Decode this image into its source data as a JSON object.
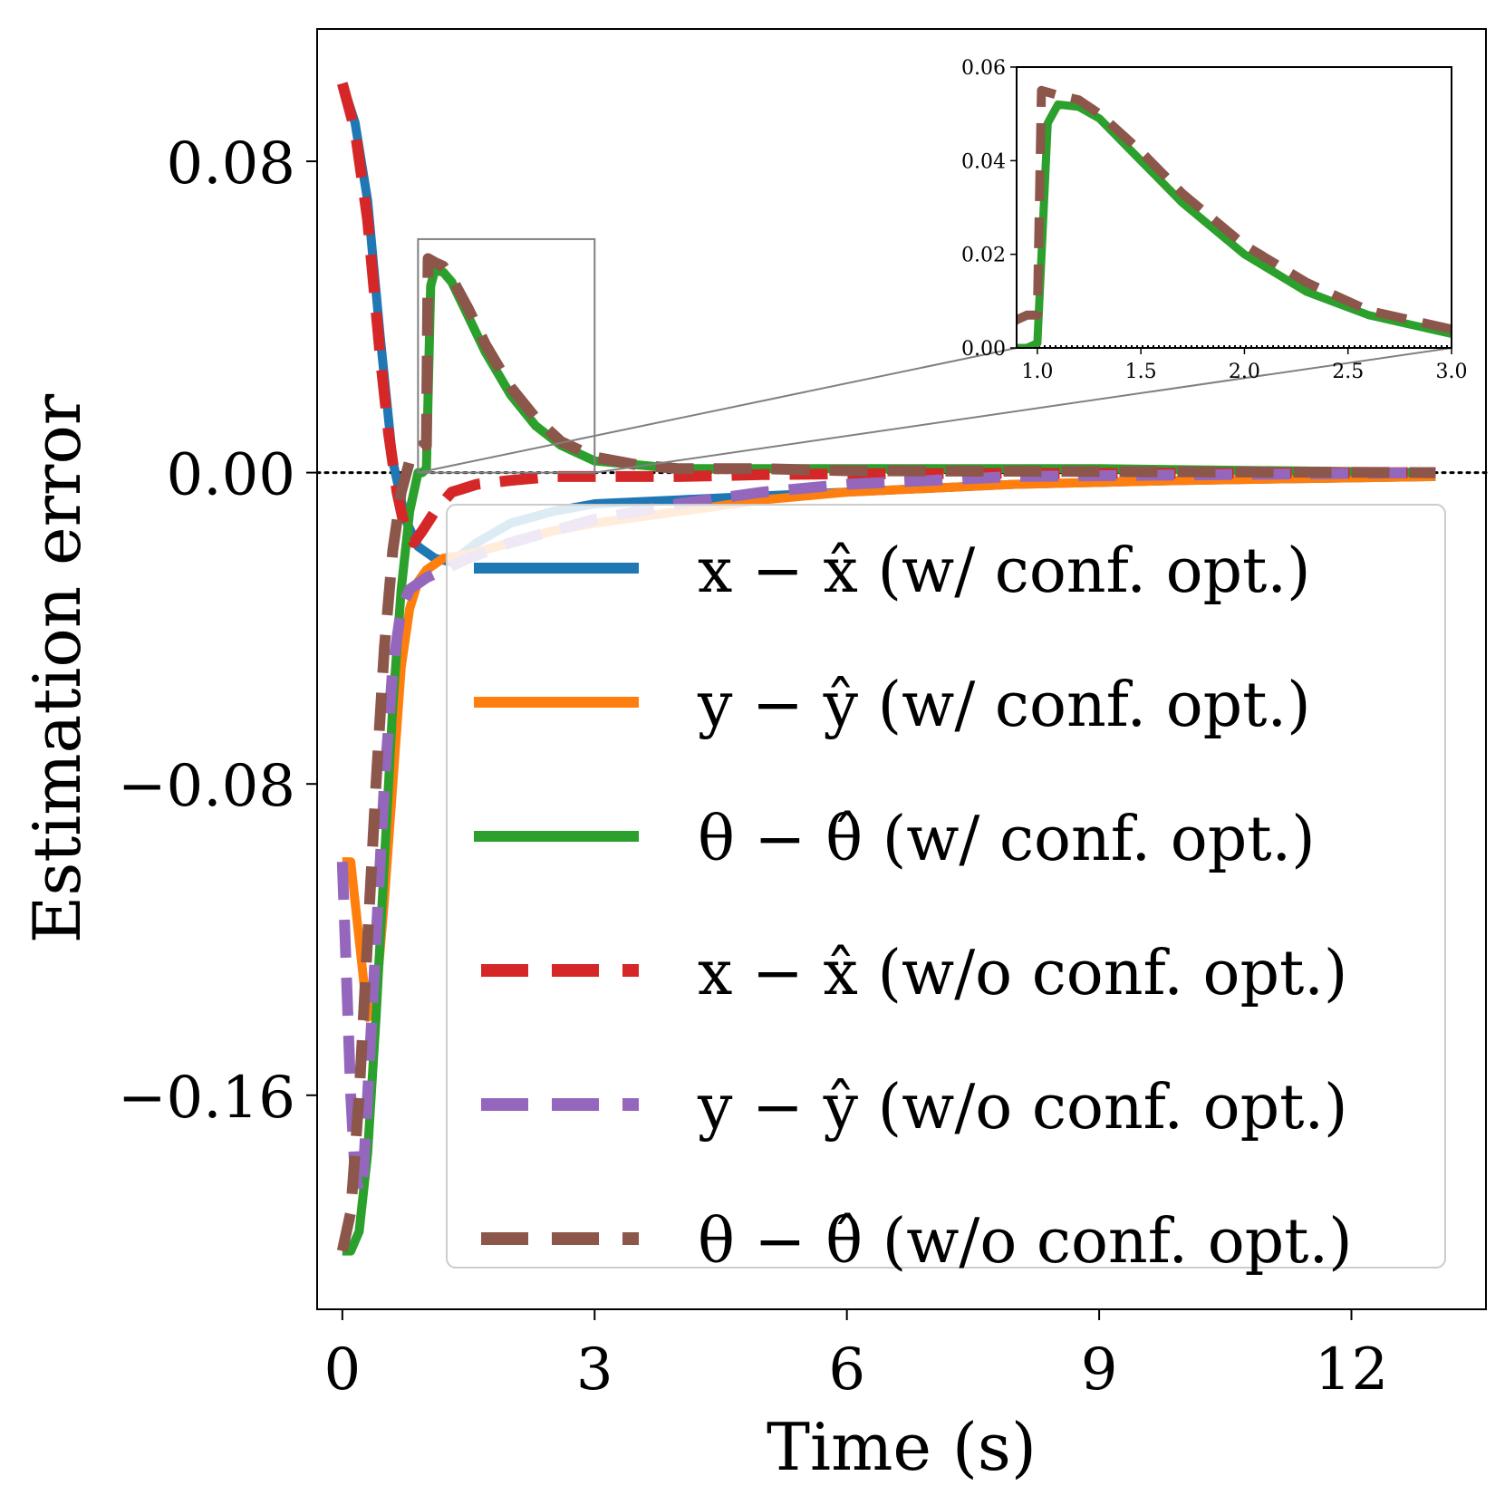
{
  "chart_data": {
    "type": "line",
    "title": "",
    "xlabel": "Time (s)",
    "ylabel": "Estimation error",
    "xlim": [
      -0.3,
      13.6
    ],
    "ylim": [
      -0.215,
      0.114
    ],
    "xticks": [
      0,
      3,
      6,
      9,
      12
    ],
    "xtick_labels": [
      "0",
      "3",
      "6",
      "9",
      "12"
    ],
    "yticks": [
      0.08,
      0.0,
      -0.08,
      -0.16
    ],
    "ytick_labels": [
      "0.08",
      "0.00",
      "−0.08",
      "−0.16"
    ],
    "zero_reference_line": true,
    "legend_position": "lower-right",
    "series": [
      {
        "name": "x − x̂ (w/ conf. opt.)",
        "color": "#1f77b4",
        "style": "solid",
        "x": [
          0,
          0.15,
          0.3,
          0.45,
          0.6,
          0.75,
          0.9,
          1.1,
          1.3,
          1.6,
          2,
          2.5,
          3,
          4,
          5,
          6,
          8,
          10,
          13
        ],
        "y": [
          0.1,
          0.09,
          0.07,
          0.035,
          0.003,
          -0.012,
          -0.019,
          -0.022,
          -0.023,
          -0.018,
          -0.013,
          -0.01,
          -0.008,
          -0.007,
          -0.006,
          -0.005,
          -0.003,
          -0.002,
          -0.001
        ]
      },
      {
        "name": "y − ŷ (w/ conf. opt.)",
        "color": "#ff7f0e",
        "style": "solid",
        "x": [
          0,
          0.1,
          0.2,
          0.3,
          0.4,
          0.5,
          0.6,
          0.7,
          0.8,
          0.9,
          1.0,
          1.2,
          1.5,
          2,
          2.5,
          3,
          4,
          5,
          6,
          8,
          10,
          13
        ],
        "y": [
          -0.1,
          -0.1,
          -0.12,
          -0.14,
          -0.135,
          -0.11,
          -0.08,
          -0.05,
          -0.035,
          -0.028,
          -0.025,
          -0.022,
          -0.021,
          -0.018,
          -0.015,
          -0.013,
          -0.01,
          -0.007,
          -0.005,
          -0.003,
          -0.002,
          -0.001
        ]
      },
      {
        "name": "θ − θ̂ (w/ conf. opt.)",
        "color": "#2ca02c",
        "style": "solid",
        "x": [
          0,
          0.1,
          0.2,
          0.3,
          0.4,
          0.5,
          0.6,
          0.7,
          0.8,
          0.9,
          0.95,
          1.0,
          1.05,
          1.1,
          1.2,
          1.3,
          1.5,
          1.7,
          2.0,
          2.3,
          2.6,
          3.0,
          4,
          5,
          6,
          9,
          13
        ],
        "y": [
          -0.2,
          -0.2,
          -0.195,
          -0.175,
          -0.14,
          -0.1,
          -0.06,
          -0.03,
          -0.01,
          0.0,
          0.0,
          0.001,
          0.048,
          0.052,
          0.0515,
          0.049,
          0.04,
          0.031,
          0.02,
          0.012,
          0.007,
          0.003,
          0.001,
          0.001,
          0.001,
          0.001,
          0.0
        ]
      },
      {
        "name": "x − x̂ (w/o conf. opt.)",
        "color": "#d62728",
        "style": "dashed",
        "x": [
          0,
          0.15,
          0.3,
          0.45,
          0.55,
          0.65,
          0.75,
          0.85,
          0.95,
          1.1,
          1.3,
          1.6,
          2,
          2.5,
          3,
          4,
          5,
          6,
          13
        ],
        "y": [
          0.1,
          0.088,
          0.065,
          0.03,
          0.01,
          -0.005,
          -0.015,
          -0.018,
          -0.015,
          -0.01,
          -0.005,
          -0.003,
          -0.002,
          -0.001,
          -0.001,
          -0.001,
          -0.0005,
          -0.0003,
          0.0
        ]
      },
      {
        "name": "y − ŷ (w/o conf. opt.)",
        "color": "#9467bd",
        "style": "dashed",
        "x": [
          0,
          0.05,
          0.1,
          0.15,
          0.2,
          0.25,
          0.3,
          0.4,
          0.5,
          0.6,
          0.7,
          0.8,
          1.0,
          1.2,
          1.5,
          2,
          2.5,
          3,
          4,
          5,
          6,
          8,
          13
        ],
        "y": [
          -0.1,
          -0.13,
          -0.16,
          -0.18,
          -0.185,
          -0.18,
          -0.16,
          -0.12,
          -0.08,
          -0.05,
          -0.035,
          -0.03,
          -0.027,
          -0.025,
          -0.022,
          -0.018,
          -0.015,
          -0.012,
          -0.008,
          -0.005,
          -0.003,
          -0.001,
          0.0
        ]
      },
      {
        "name": "θ − θ̂ (w/o conf. opt.)",
        "color": "#8c564b",
        "style": "dashed",
        "x": [
          0,
          0.1,
          0.2,
          0.3,
          0.4,
          0.5,
          0.6,
          0.7,
          0.8,
          0.9,
          0.95,
          1.0,
          1.02,
          1.1,
          1.2,
          1.3,
          1.5,
          1.7,
          2.0,
          2.3,
          2.6,
          3.0,
          3.5,
          4,
          5,
          6,
          13
        ],
        "y": [
          -0.2,
          -0.19,
          -0.16,
          -0.12,
          -0.08,
          -0.045,
          -0.02,
          -0.005,
          0.003,
          0.006,
          0.007,
          0.007,
          0.055,
          0.054,
          0.053,
          0.05,
          0.042,
          0.033,
          0.022,
          0.014,
          0.008,
          0.004,
          0.002,
          0.001,
          0.001,
          0.0005,
          0.0
        ]
      }
    ],
    "inset": {
      "xlim": [
        0.9,
        3.0
      ],
      "ylim": [
        0.0,
        0.06
      ],
      "source_box": {
        "x": [
          0.9,
          3.0
        ],
        "y": [
          0.0,
          0.06
        ]
      },
      "xticks": [
        1.0,
        1.5,
        2.0,
        2.5,
        3.0
      ],
      "xtick_labels": [
        "1.0",
        "1.5",
        "2.0",
        "2.5",
        "3.0"
      ],
      "yticks": [
        0.0,
        0.02,
        0.04,
        0.06
      ],
      "ytick_labels": [
        "0.00",
        "0.02",
        "0.04",
        "0.06"
      ],
      "series_shown": [
        2,
        5
      ]
    }
  }
}
